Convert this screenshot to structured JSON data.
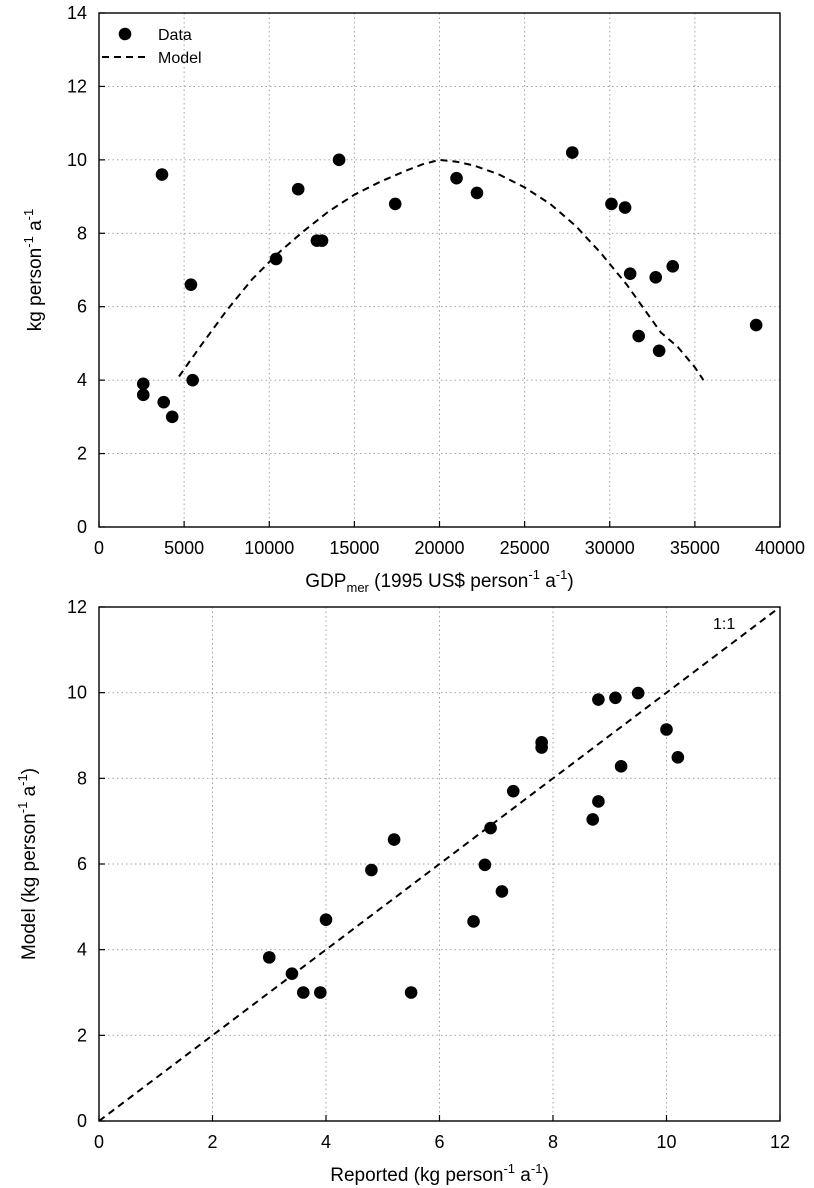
{
  "chart_data": [
    {
      "type": "scatter",
      "xlabel_parts": [
        "GDP",
        "mer",
        " (1995 US$ person",
        "-1",
        " a",
        "-1",
        ")"
      ],
      "ylabel_parts": [
        "kg person",
        "-1",
        " a",
        "-1"
      ],
      "xlim": [
        0,
        40000
      ],
      "ylim": [
        0,
        14
      ],
      "xticks": [
        0,
        5000,
        10000,
        15000,
        20000,
        25000,
        30000,
        35000,
        40000
      ],
      "yticks": [
        0,
        2,
        4,
        6,
        8,
        10,
        12,
        14
      ],
      "grid": true,
      "legend": {
        "placement": "top-left",
        "entries": [
          "Data",
          "Model"
        ]
      },
      "series": [
        {
          "name": "Data",
          "kind": "points",
          "x": [
            2600,
            2600,
            3700,
            3800,
            4300,
            5400,
            5500,
            10400,
            11700,
            12800,
            13100,
            14100,
            17400,
            21000,
            22200,
            27800,
            30100,
            30900,
            31200,
            31700,
            32700,
            32900,
            33700,
            38600
          ],
          "y": [
            3.9,
            3.6,
            9.6,
            3.4,
            3.0,
            6.6,
            4.0,
            7.3,
            9.2,
            7.8,
            7.8,
            10.0,
            8.8,
            9.5,
            9.1,
            10.2,
            8.8,
            8.7,
            6.9,
            5.2,
            6.8,
            4.8,
            7.1,
            5.5
          ]
        },
        {
          "name": "Model",
          "kind": "dashed-line",
          "x": [
            4700,
            6000,
            7500,
            9000,
            10500,
            12000,
            13500,
            15000,
            16500,
            18000,
            19000,
            20000,
            21000,
            22000,
            23500,
            25000,
            26500,
            28000,
            29500,
            31000,
            32000,
            33000,
            34000,
            35000,
            35500
          ],
          "y": [
            4.1,
            4.95,
            5.9,
            6.75,
            7.45,
            8.05,
            8.6,
            9.05,
            9.4,
            9.7,
            9.88,
            10.0,
            9.95,
            9.85,
            9.6,
            9.25,
            8.8,
            8.2,
            7.45,
            6.6,
            5.95,
            5.3,
            4.9,
            4.35,
            4.0
          ]
        }
      ]
    },
    {
      "type": "scatter",
      "xlabel_parts": [
        "Reported (kg person",
        "-1",
        " a",
        "-1",
        ")"
      ],
      "ylabel_parts": [
        "Model (kg person",
        "-1",
        " a",
        "-1",
        ")"
      ],
      "xlim": [
        0,
        12
      ],
      "ylim": [
        0,
        12
      ],
      "xticks": [
        0,
        2,
        4,
        6,
        8,
        10,
        12
      ],
      "yticks": [
        0,
        2,
        4,
        6,
        8,
        10,
        12
      ],
      "grid": true,
      "annotation": "1:1",
      "series": [
        {
          "kind": "points",
          "x": [
            3.0,
            3.4,
            3.6,
            3.9,
            4.0,
            4.8,
            5.2,
            5.5,
            6.6,
            6.8,
            6.9,
            7.1,
            7.3,
            7.8,
            7.8,
            8.7,
            8.8,
            8.8,
            9.1,
            9.2,
            9.5,
            10.0,
            10.2
          ],
          "y": [
            3.82,
            3.44,
            3.0,
            3.0,
            4.7,
            5.86,
            6.57,
            3.0,
            4.66,
            5.98,
            6.84,
            5.36,
            7.7,
            8.84,
            8.72,
            7.04,
            9.84,
            7.46,
            9.88,
            8.28,
            9.99,
            9.14,
            8.49
          ]
        },
        {
          "kind": "dashed-line",
          "x": [
            0,
            12
          ],
          "y": [
            0,
            12
          ]
        }
      ]
    }
  ]
}
